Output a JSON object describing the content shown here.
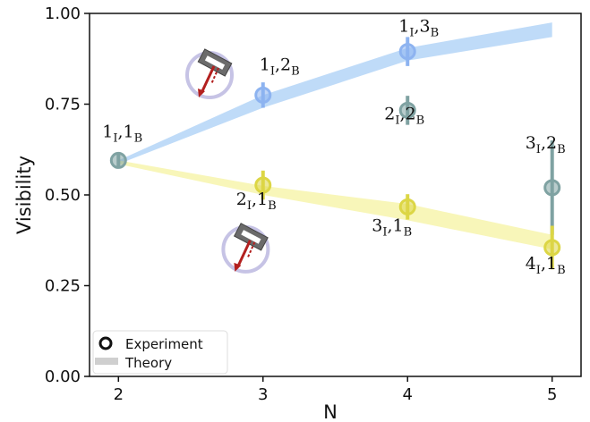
{
  "chart_data": {
    "type": "scatter",
    "title": "",
    "xlabel": "N",
    "ylabel": "Visibility",
    "xlim": [
      1.8,
      5.2
    ],
    "ylim": [
      0.0,
      1.0
    ],
    "xticks": [
      2,
      3,
      4,
      5
    ],
    "yticks": [
      0.0,
      0.25,
      0.5,
      0.75,
      1.0
    ],
    "xtick_labels": [
      "2",
      "3",
      "4",
      "5"
    ],
    "ytick_labels": [
      "0.00",
      "0.25",
      "0.50",
      "0.75",
      "1.00"
    ],
    "grid": false,
    "legend": {
      "position": "bottom-left",
      "entries": [
        {
          "label": "Experiment",
          "marker": "ring"
        },
        {
          "label": "Theory",
          "marker": "band"
        }
      ]
    },
    "theory_bands": [
      {
        "color": "#a9cff5",
        "x": [
          2,
          3,
          4,
          5
        ],
        "lower": [
          0.585,
          0.74,
          0.87,
          0.935
        ],
        "upper": [
          0.595,
          0.775,
          0.905,
          0.975
        ]
      },
      {
        "color": "#f6f3a2",
        "x": [
          2,
          3,
          4,
          5
        ],
        "lower": [
          0.585,
          0.5,
          0.43,
          0.35
        ],
        "upper": [
          0.595,
          0.525,
          0.475,
          0.39
        ]
      }
    ],
    "series": [
      {
        "color": "#7fa2a2",
        "points": [
          {
            "x": 2,
            "y": 0.595,
            "err_low": 0.02,
            "err_high": 0.02,
            "label_main": "1",
            "label_sub": "I",
            "label_main2": "1",
            "label_sub2": "B"
          },
          {
            "x": 4,
            "y": 0.733,
            "err_low": 0.04,
            "err_high": 0.04,
            "label_main": "2",
            "label_sub": "I",
            "label_main2": "2",
            "label_sub2": "B"
          },
          {
            "x": 5,
            "y": 0.52,
            "err_low": 0.13,
            "err_high": 0.13,
            "label_main": "3",
            "label_sub": "I",
            "label_main2": "2",
            "label_sub2": "B"
          }
        ]
      },
      {
        "color": "#8db3f0",
        "points": [
          {
            "x": 3,
            "y": 0.775,
            "err_low": 0.035,
            "err_high": 0.035,
            "label_main": "1",
            "label_sub": "I",
            "label_main2": "2",
            "label_sub2": "B"
          },
          {
            "x": 4,
            "y": 0.895,
            "err_low": 0.04,
            "err_high": 0.04,
            "label_main": "1",
            "label_sub": "I",
            "label_main2": "3",
            "label_sub2": "B"
          }
        ]
      },
      {
        "color": "#dcd645",
        "points": [
          {
            "x": 3,
            "y": 0.527,
            "err_low": 0.04,
            "err_high": 0.04,
            "label_main": "2",
            "label_sub": "I",
            "label_main2": "1",
            "label_sub2": "B"
          },
          {
            "x": 4,
            "y": 0.467,
            "err_low": 0.035,
            "err_high": 0.035,
            "label_main": "3",
            "label_sub": "I",
            "label_main2": "1",
            "label_sub2": "B"
          },
          {
            "x": 5,
            "y": 0.355,
            "err_low": 0.06,
            "err_high": 0.06,
            "label_main": "4",
            "label_sub": "I",
            "label_main2": "1",
            "label_sub2": "B"
          }
        ]
      }
    ],
    "insets": [
      {
        "name": "upper-beamsplitter-inset",
        "x": 2.63,
        "y": 0.83
      },
      {
        "name": "lower-beamsplitter-inset",
        "x": 2.88,
        "y": 0.35
      }
    ]
  }
}
